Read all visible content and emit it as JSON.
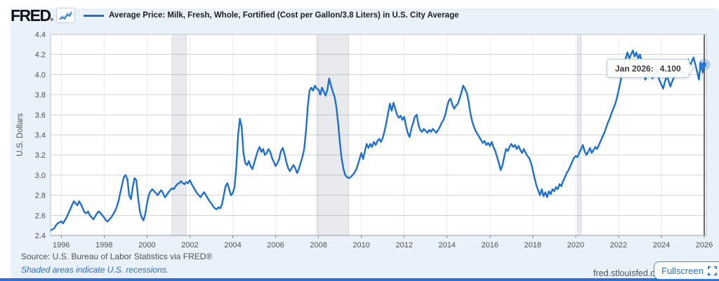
{
  "header": {
    "logo_text": "FRED",
    "logo_mark": "®",
    "legend_label": "Average Price: Milk, Fresh, Whole, Fortified (Cost per Gallon/3.8 Liters) in U.S. City Average"
  },
  "tooltip": {
    "date_label": "Jan 2026:",
    "value": "4.100"
  },
  "footer": {
    "source": "Source: U.S. Bureau of Labor Statistics via FRED®",
    "recession_note": "Shaded areas indicate U.S. recessions.",
    "site": "fred.stlouisfed.org",
    "fullscreen_label": "Fullscreen"
  },
  "icons": {
    "logo_chart": "sparkline-icon",
    "fullscreen": "expand-corners-icon"
  },
  "colors": {
    "line": "#1e70d0",
    "panel_bg": "#e9f2fb",
    "link_blue": "#2a6fce",
    "bottom_bar": "#2a72d8",
    "recession_band": "rgba(115,125,140,0.16)",
    "crosshair": "#3c3c3c",
    "marker_halo": "rgba(30,112,208,0.28)"
  },
  "chart_data": {
    "type": "line",
    "title": "Average Price: Milk, Fresh, Whole, Fortified (Cost per Gallon/3.8 Liters) in U.S. City Average",
    "xlabel": "",
    "ylabel": "U.S. Dollars",
    "ylim": [
      2.4,
      4.4
    ],
    "y_tick_step": 0.2,
    "x_ticks": [
      1996,
      1998,
      2000,
      2002,
      2004,
      2006,
      2008,
      2010,
      2012,
      2014,
      2016,
      2018,
      2020,
      2022,
      2024,
      2026
    ],
    "grid": true,
    "legend_position": "top",
    "start": "1995-07",
    "frequency": "monthly",
    "values": [
      2.45,
      2.46,
      2.47,
      2.5,
      2.52,
      2.53,
      2.54,
      2.52,
      2.55,
      2.58,
      2.62,
      2.66,
      2.7,
      2.74,
      2.72,
      2.7,
      2.74,
      2.71,
      2.67,
      2.63,
      2.62,
      2.64,
      2.6,
      2.58,
      2.56,
      2.59,
      2.62,
      2.64,
      2.62,
      2.6,
      2.58,
      2.55,
      2.54,
      2.56,
      2.58,
      2.61,
      2.64,
      2.68,
      2.74,
      2.82,
      2.9,
      2.98,
      3.0,
      2.96,
      2.8,
      2.76,
      2.88,
      2.97,
      2.95,
      2.78,
      2.64,
      2.58,
      2.55,
      2.61,
      2.72,
      2.8,
      2.84,
      2.86,
      2.84,
      2.82,
      2.8,
      2.83,
      2.85,
      2.82,
      2.78,
      2.8,
      2.83,
      2.85,
      2.87,
      2.86,
      2.89,
      2.91,
      2.92,
      2.94,
      2.92,
      2.91,
      2.93,
      2.92,
      2.95,
      2.91,
      2.88,
      2.85,
      2.82,
      2.8,
      2.78,
      2.81,
      2.83,
      2.8,
      2.77,
      2.74,
      2.72,
      2.69,
      2.67,
      2.66,
      2.68,
      2.67,
      2.71,
      2.8,
      2.89,
      2.92,
      2.86,
      2.8,
      2.82,
      2.88,
      3.08,
      3.4,
      3.56,
      3.48,
      3.22,
      3.12,
      3.1,
      3.14,
      3.09,
      3.06,
      3.12,
      3.18,
      3.24,
      3.28,
      3.23,
      3.26,
      3.2,
      3.22,
      3.26,
      3.23,
      3.17,
      3.13,
      3.09,
      3.12,
      3.16,
      3.24,
      3.27,
      3.21,
      3.13,
      3.07,
      3.04,
      3.07,
      3.1,
      3.07,
      3.02,
      3.06,
      3.12,
      3.18,
      3.26,
      3.44,
      3.68,
      3.84,
      3.87,
      3.84,
      3.89,
      3.86,
      3.85,
      3.8,
      3.87,
      3.83,
      3.79,
      3.85,
      3.96,
      3.89,
      3.83,
      3.78,
      3.68,
      3.52,
      3.32,
      3.16,
      3.06,
      3.0,
      2.98,
      2.97,
      2.98,
      3.0,
      3.02,
      3.05,
      3.1,
      3.16,
      3.22,
      3.16,
      3.24,
      3.31,
      3.27,
      3.31,
      3.28,
      3.33,
      3.3,
      3.34,
      3.36,
      3.33,
      3.37,
      3.44,
      3.52,
      3.62,
      3.71,
      3.64,
      3.72,
      3.66,
      3.6,
      3.57,
      3.59,
      3.55,
      3.58,
      3.49,
      3.42,
      3.38,
      3.46,
      3.52,
      3.58,
      3.6,
      3.5,
      3.45,
      3.43,
      3.46,
      3.44,
      3.42,
      3.45,
      3.43,
      3.46,
      3.44,
      3.42,
      3.45,
      3.48,
      3.52,
      3.55,
      3.6,
      3.68,
      3.74,
      3.76,
      3.7,
      3.66,
      3.69,
      3.71,
      3.76,
      3.82,
      3.89,
      3.86,
      3.82,
      3.74,
      3.62,
      3.54,
      3.48,
      3.44,
      3.41,
      3.38,
      3.35,
      3.32,
      3.34,
      3.3,
      3.32,
      3.29,
      3.33,
      3.28,
      3.24,
      3.18,
      3.12,
      3.05,
      3.1,
      3.18,
      3.26,
      3.24,
      3.28,
      3.31,
      3.28,
      3.3,
      3.26,
      3.29,
      3.25,
      3.22,
      3.26,
      3.22,
      3.19,
      3.17,
      3.12,
      3.05,
      2.97,
      2.9,
      2.85,
      2.8,
      2.86,
      2.79,
      2.83,
      2.78,
      2.84,
      2.81,
      2.86,
      2.84,
      2.88,
      2.86,
      2.91,
      2.89,
      2.94,
      2.98,
      3.02,
      3.05,
      3.09,
      3.13,
      3.17,
      3.19,
      3.18,
      3.22,
      3.26,
      3.3,
      3.24,
      3.2,
      3.23,
      3.27,
      3.22,
      3.25,
      3.28,
      3.26,
      3.3,
      3.34,
      3.38,
      3.42,
      3.47,
      3.52,
      3.56,
      3.61,
      3.66,
      3.7,
      3.76,
      3.84,
      3.92,
      4.02,
      4.1,
      4.16,
      4.22,
      4.16,
      4.2,
      4.24,
      4.18,
      4.22,
      4.16,
      4.2,
      4.12,
      4.03,
      3.95,
      4.0,
      4.07,
      4.02,
      3.96,
      4.01,
      4.05,
      3.99,
      3.94,
      3.9,
      3.86,
      3.93,
      3.99,
      3.94,
      3.88,
      3.93,
      3.97,
      4.01,
      4.05,
      4.09,
      4.03,
      3.99,
      4.05,
      4.11,
      4.15,
      4.08,
      4.13,
      4.17,
      4.1,
      4.03,
      3.95,
      4.12,
      4.02,
      4.1
    ],
    "recessions": [
      {
        "start": "2001-03",
        "end": "2001-11"
      },
      {
        "start": "2007-12",
        "end": "2009-06"
      },
      {
        "start": "2020-02",
        "end": "2020-04"
      }
    ],
    "last_point": {
      "date": "Jan 2026",
      "value": 4.1
    }
  }
}
